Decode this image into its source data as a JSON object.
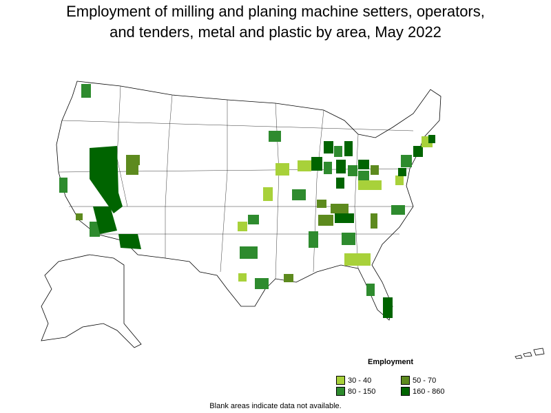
{
  "title_line1": "Employment of milling and planing machine setters, operators,",
  "title_line2": "and tenders, metal and plastic by area, May 2022",
  "legend": {
    "title": "Employment",
    "items": [
      {
        "label": "30 - 40",
        "color": "#a8d13a"
      },
      {
        "label": "50 - 70",
        "color": "#5d8a1e"
      },
      {
        "label": "80 - 150",
        "color": "#2e8b2e"
      },
      {
        "label": "160 - 860",
        "color": "#006400"
      }
    ]
  },
  "note": "Blank areas indicate data not available."
}
